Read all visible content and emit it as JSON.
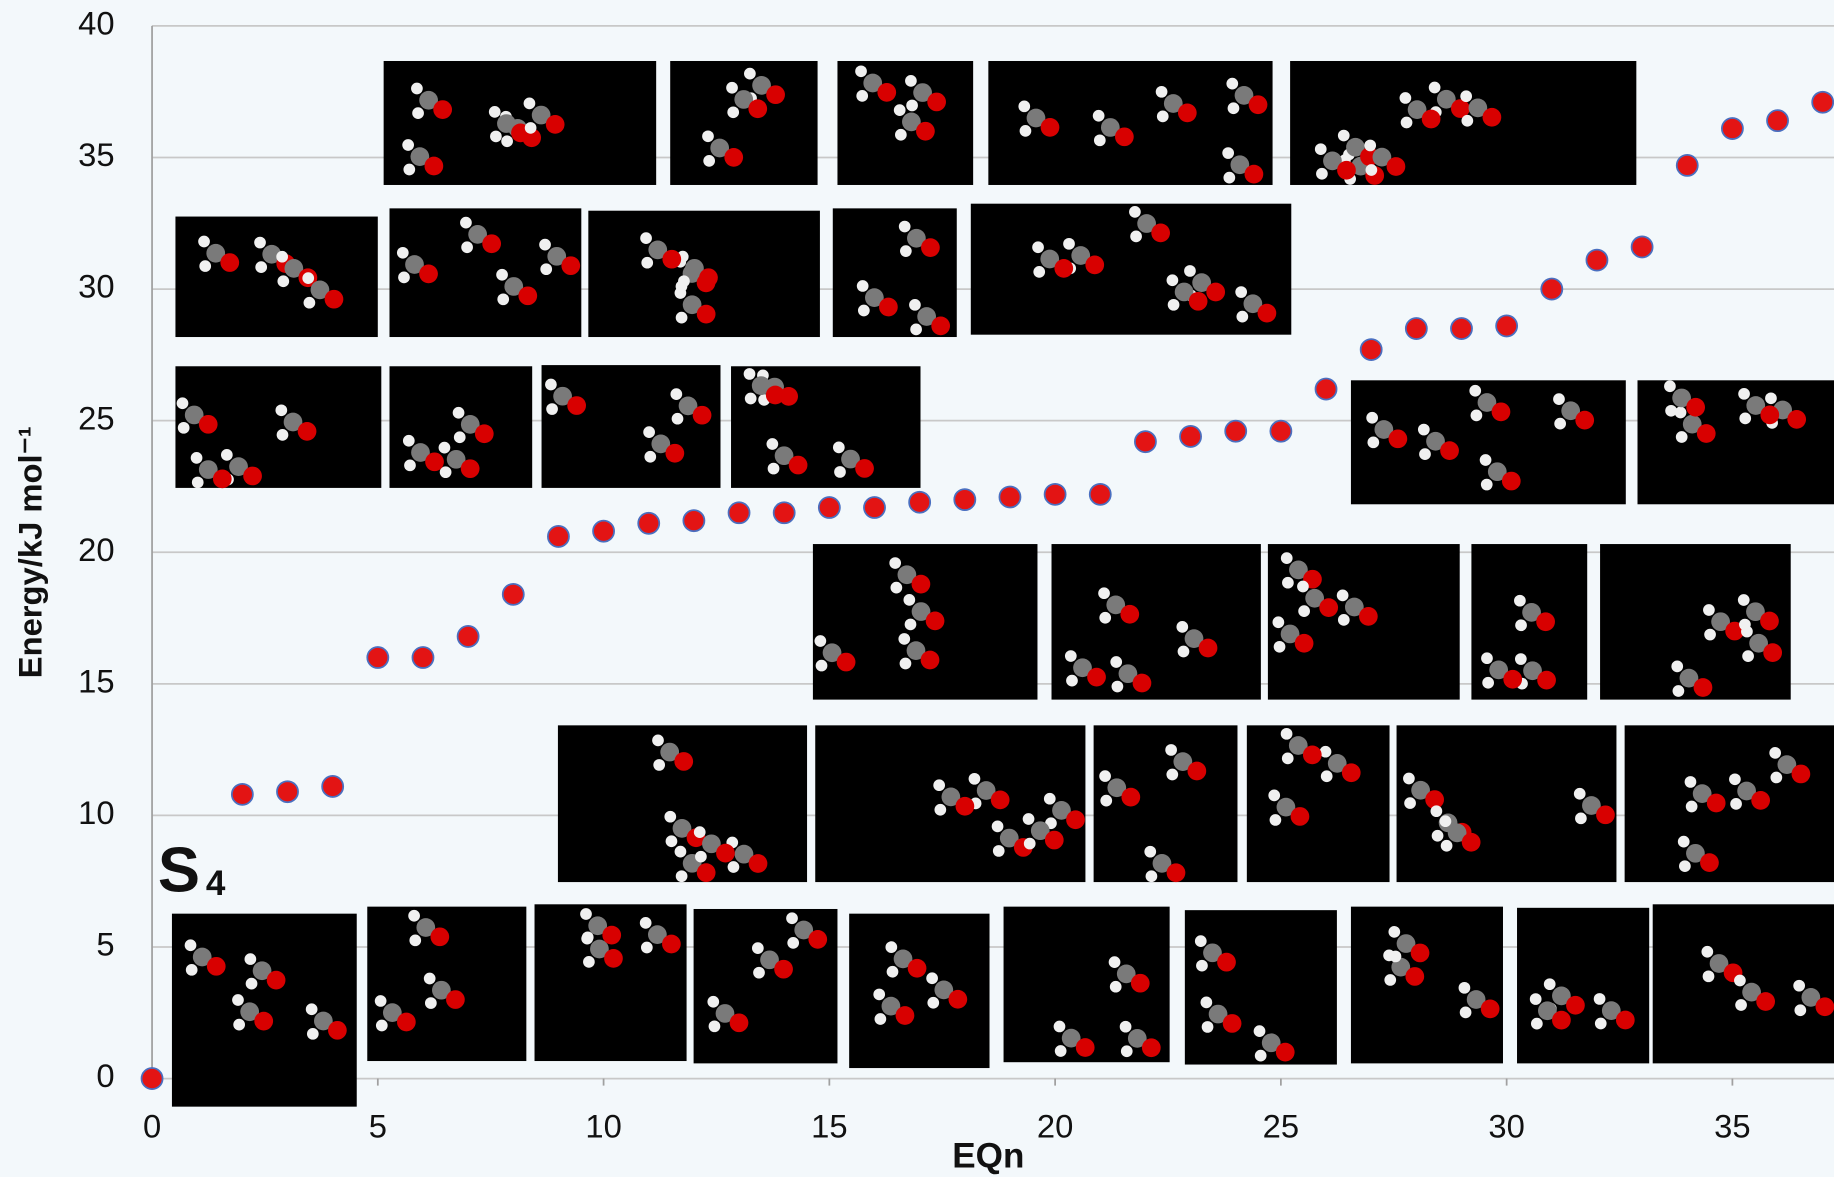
{
  "chart_data": {
    "type": "scatter",
    "x_label": "EQn",
    "y_label": "Energy/kJ mol⁻¹",
    "annotation": {
      "text": "S",
      "subscript": "4"
    },
    "x": [
      0,
      2,
      3,
      4,
      5,
      6,
      7,
      8,
      9,
      10,
      11,
      12,
      13,
      14,
      15,
      16,
      17,
      18,
      19,
      20,
      21,
      22,
      23,
      24,
      25,
      26,
      27,
      28,
      29,
      30,
      31,
      32,
      33,
      34,
      35,
      36,
      37
    ],
    "values": [
      0,
      10.8,
      10.9,
      11.1,
      16.0,
      16.0,
      16.8,
      18.4,
      20.6,
      20.8,
      21.1,
      21.2,
      21.5,
      21.5,
      21.7,
      21.7,
      21.9,
      22.0,
      22.1,
      22.2,
      22.2,
      24.2,
      24.4,
      24.6,
      24.6,
      26.2,
      27.7,
      28.5,
      28.5,
      28.6,
      30.0,
      31.1,
      31.6,
      34.7,
      36.1,
      36.4,
      37.1
    ],
    "color": "#e31414",
    "edge_color": "#4a6fc0",
    "xlim": [
      0,
      37.25
    ],
    "ylim": [
      0,
      40
    ],
    "xticks": [
      0,
      5,
      10,
      15,
      20,
      25,
      30,
      35
    ],
    "yticks": [
      0,
      5,
      10,
      15,
      20,
      25,
      30,
      35,
      40
    ],
    "grid": true
  }
}
